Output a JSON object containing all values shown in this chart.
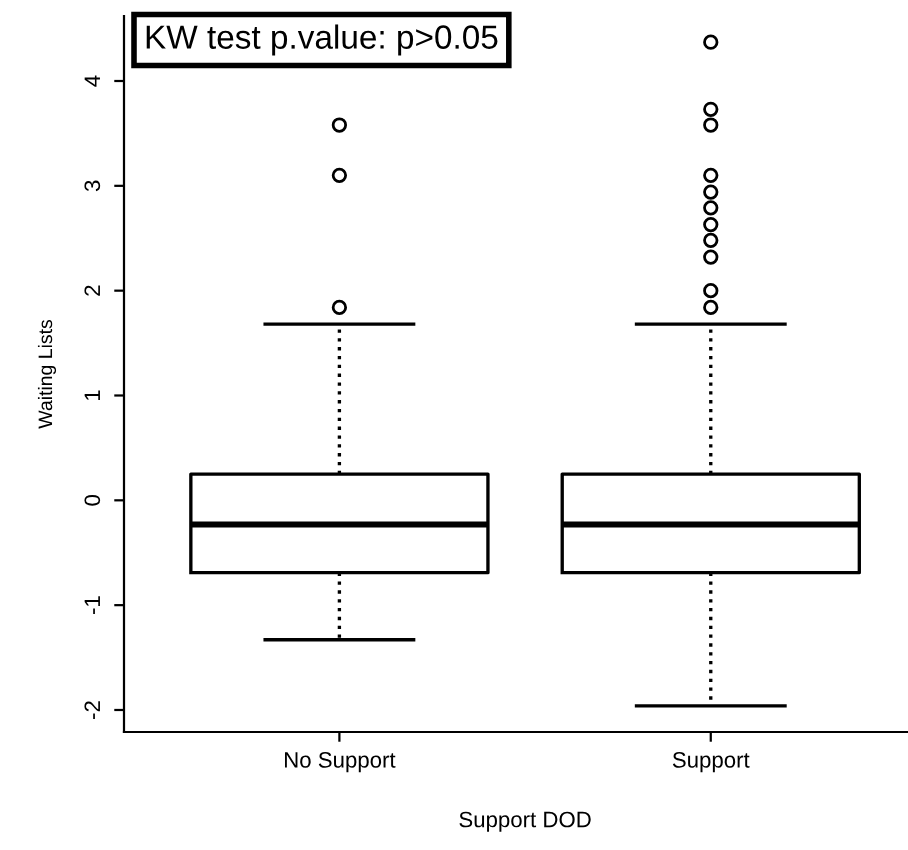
{
  "chart_data": {
    "type": "box",
    "xlabel": "Support DOD",
    "ylabel": "Waiting Lists",
    "categories": [
      "No Support",
      "Support"
    ],
    "boxes": [
      {
        "low": -1.33,
        "q1": -0.69,
        "median": -0.23,
        "q3": 0.25,
        "high": 1.68,
        "outliers": [
          3.58,
          3.1,
          1.84
        ]
      },
      {
        "low": -1.96,
        "q1": -0.69,
        "median": -0.23,
        "q3": 0.25,
        "high": 1.68,
        "outliers": [
          4.37,
          3.73,
          3.58,
          3.1,
          2.94,
          2.79,
          2.63,
          2.48,
          2.32,
          2.0,
          1.84
        ]
      }
    ],
    "ylim": [
      -2.21,
      4.62
    ],
    "yticks": [
      -2,
      -1,
      0,
      1,
      2,
      3,
      4
    ],
    "line_style": "dotted",
    "grid": false,
    "annotations": [
      "KW test p.value: p>0.05"
    ]
  }
}
